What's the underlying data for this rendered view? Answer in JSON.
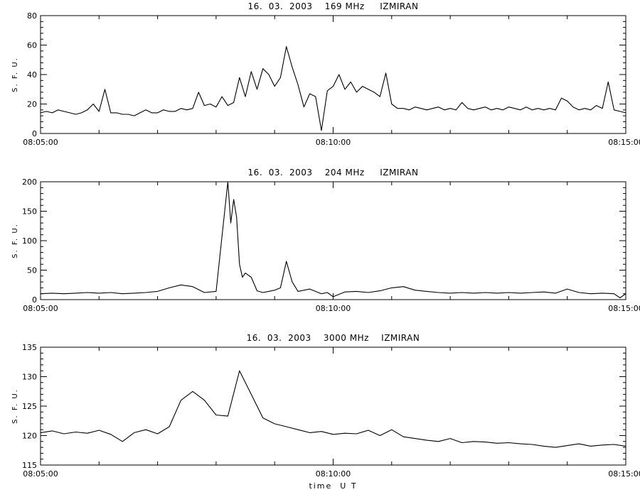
{
  "chart_data": [
    {
      "type": "line",
      "title": "16.  03.  2003    169 MHz     IZMIRAN",
      "ylabel": "S. F. U.",
      "xlabel": "",
      "xlim": [
        "08:05:00",
        "08:15:00"
      ],
      "xticks": [
        "08:05:00",
        "08:10:00",
        "08:15:00"
      ],
      "ylim": [
        0,
        80
      ],
      "yticks": [
        0,
        20,
        40,
        60,
        80
      ],
      "grid": false,
      "series": [
        {
          "x": [
            "08:05:00",
            "08:05:06",
            "08:05:12",
            "08:05:18",
            "08:05:24",
            "08:05:30",
            "08:05:36",
            "08:05:42",
            "08:05:48",
            "08:05:54",
            "08:06:00",
            "08:06:06",
            "08:06:12",
            "08:06:18",
            "08:06:24",
            "08:06:30",
            "08:06:36",
            "08:06:42",
            "08:06:48",
            "08:06:54",
            "08:07:00",
            "08:07:06",
            "08:07:12",
            "08:07:18",
            "08:07:24",
            "08:07:30",
            "08:07:36",
            "08:07:42",
            "08:07:48",
            "08:07:54",
            "08:08:00",
            "08:08:06",
            "08:08:12",
            "08:08:18",
            "08:08:24",
            "08:08:30",
            "08:08:36",
            "08:08:42",
            "08:08:48",
            "08:08:54",
            "08:09:00",
            "08:09:06",
            "08:09:12",
            "08:09:18",
            "08:09:24",
            "08:09:30",
            "08:09:36",
            "08:09:42",
            "08:09:48",
            "08:09:54",
            "08:10:00",
            "08:10:06",
            "08:10:12",
            "08:10:18",
            "08:10:24",
            "08:10:30",
            "08:10:36",
            "08:10:42",
            "08:10:48",
            "08:10:54",
            "08:11:00",
            "08:11:06",
            "08:11:12",
            "08:11:18",
            "08:11:24",
            "08:11:30",
            "08:11:36",
            "08:11:42",
            "08:11:48",
            "08:11:54",
            "08:12:00",
            "08:12:06",
            "08:12:12",
            "08:12:18",
            "08:12:24",
            "08:12:30",
            "08:12:36",
            "08:12:42",
            "08:12:48",
            "08:12:54",
            "08:13:00",
            "08:13:06",
            "08:13:12",
            "08:13:18",
            "08:13:24",
            "08:13:30",
            "08:13:36",
            "08:13:42",
            "08:13:48",
            "08:13:54",
            "08:14:00",
            "08:14:06",
            "08:14:12",
            "08:14:18",
            "08:14:24",
            "08:14:30",
            "08:14:36",
            "08:14:42",
            "08:14:48",
            "08:14:54",
            "08:15:00"
          ],
          "values": [
            14,
            15,
            14,
            16,
            15,
            14,
            13,
            14,
            16,
            20,
            15,
            30,
            14,
            14,
            13,
            13,
            12,
            14,
            16,
            14,
            14,
            16,
            15,
            15,
            17,
            16,
            17,
            28,
            19,
            20,
            18,
            25,
            19,
            21,
            38,
            25,
            42,
            30,
            44,
            40,
            32,
            38,
            59,
            45,
            33,
            18,
            27,
            25,
            2,
            29,
            32,
            40,
            30,
            35,
            28,
            32,
            30,
            28,
            25,
            41,
            20,
            17,
            17,
            16,
            18,
            17,
            16,
            17,
            18,
            16,
            17,
            16,
            21,
            17,
            16,
            17,
            18,
            16,
            17,
            16,
            18,
            17,
            16,
            18,
            16,
            17,
            16,
            17,
            16,
            24,
            22,
            18,
            16,
            17,
            16,
            19,
            17,
            35,
            16,
            15,
            14
          ]
        }
      ]
    },
    {
      "type": "line",
      "title": "16.  03.  2003    204 MHz     IZMIRAN",
      "ylabel": "S. F. U.",
      "xlabel": "",
      "xlim": [
        "08:05:00",
        "08:15:00"
      ],
      "xticks": [
        "08:05:00",
        "08:10:00",
        "08:15:00"
      ],
      "ylim": [
        0,
        200
      ],
      "yticks": [
        0,
        50,
        100,
        150,
        200
      ],
      "grid": false,
      "series": [
        {
          "x": [
            "08:05:00",
            "08:05:12",
            "08:05:24",
            "08:05:36",
            "08:05:48",
            "08:06:00",
            "08:06:12",
            "08:06:24",
            "08:06:36",
            "08:06:48",
            "08:07:00",
            "08:07:12",
            "08:07:24",
            "08:07:36",
            "08:07:48",
            "08:08:00",
            "08:08:12",
            "08:08:15",
            "08:08:18",
            "08:08:21",
            "08:08:24",
            "08:08:27",
            "08:08:30",
            "08:08:36",
            "08:08:42",
            "08:08:48",
            "08:08:54",
            "08:09:00",
            "08:09:06",
            "08:09:12",
            "08:09:18",
            "08:09:24",
            "08:09:36",
            "08:09:48",
            "08:09:54",
            "08:10:00",
            "08:10:12",
            "08:10:24",
            "08:10:36",
            "08:10:48",
            "08:11:00",
            "08:11:12",
            "08:11:24",
            "08:11:36",
            "08:11:48",
            "08:12:00",
            "08:12:12",
            "08:12:24",
            "08:12:36",
            "08:12:48",
            "08:13:00",
            "08:13:12",
            "08:13:24",
            "08:13:36",
            "08:13:48",
            "08:14:00",
            "08:14:12",
            "08:14:24",
            "08:14:36",
            "08:14:48",
            "08:14:54",
            "08:15:00"
          ],
          "values": [
            10,
            11,
            10,
            11,
            12,
            11,
            12,
            10,
            11,
            12,
            14,
            20,
            25,
            22,
            12,
            14,
            200,
            130,
            170,
            140,
            60,
            38,
            45,
            38,
            15,
            12,
            14,
            16,
            20,
            65,
            30,
            14,
            18,
            10,
            12,
            5,
            13,
            14,
            12,
            15,
            20,
            22,
            16,
            14,
            12,
            11,
            12,
            11,
            12,
            11,
            12,
            11,
            12,
            13,
            11,
            18,
            12,
            10,
            11,
            10,
            3,
            10
          ]
        }
      ]
    },
    {
      "type": "line",
      "title": "16.  03.  2003    3000 MHz    IZMIRAN",
      "ylabel": "S. F. U.",
      "xlabel": "time  U T",
      "xlim": [
        "08:05:00",
        "08:15:00"
      ],
      "xticks": [
        "08:05:00",
        "08:10:00",
        "08:15:00"
      ],
      "ylim": [
        115,
        135
      ],
      "yticks": [
        115,
        120,
        125,
        130,
        135
      ],
      "grid": false,
      "series": [
        {
          "x": [
            "08:05:00",
            "08:05:12",
            "08:05:24",
            "08:05:36",
            "08:05:48",
            "08:06:00",
            "08:06:12",
            "08:06:24",
            "08:06:36",
            "08:06:48",
            "08:07:00",
            "08:07:12",
            "08:07:24",
            "08:07:36",
            "08:07:48",
            "08:08:00",
            "08:08:12",
            "08:08:24",
            "08:08:36",
            "08:08:48",
            "08:09:00",
            "08:09:12",
            "08:09:24",
            "08:09:36",
            "08:09:48",
            "08:10:00",
            "08:10:12",
            "08:10:24",
            "08:10:36",
            "08:10:48",
            "08:11:00",
            "08:11:12",
            "08:11:24",
            "08:11:36",
            "08:11:48",
            "08:12:00",
            "08:12:12",
            "08:12:24",
            "08:12:36",
            "08:12:48",
            "08:13:00",
            "08:13:12",
            "08:13:24",
            "08:13:36",
            "08:13:48",
            "08:14:00",
            "08:14:12",
            "08:14:24",
            "08:14:36",
            "08:14:48",
            "08:15:00"
          ],
          "values": [
            120.5,
            120.8,
            120.3,
            120.6,
            120.4,
            120.9,
            120.2,
            119.0,
            120.5,
            121.0,
            120.3,
            121.5,
            126.0,
            127.5,
            126.0,
            123.5,
            123.3,
            131.0,
            127.0,
            123.0,
            122.0,
            121.5,
            121.0,
            120.5,
            120.7,
            120.2,
            120.4,
            120.3,
            120.9,
            120.0,
            121.0,
            119.8,
            119.5,
            119.2,
            119.0,
            119.5,
            118.8,
            119.0,
            118.9,
            118.7,
            118.8,
            118.6,
            118.5,
            118.2,
            118.0,
            118.3,
            118.6,
            118.2,
            118.4,
            118.5,
            118.2
          ]
        }
      ]
    }
  ]
}
